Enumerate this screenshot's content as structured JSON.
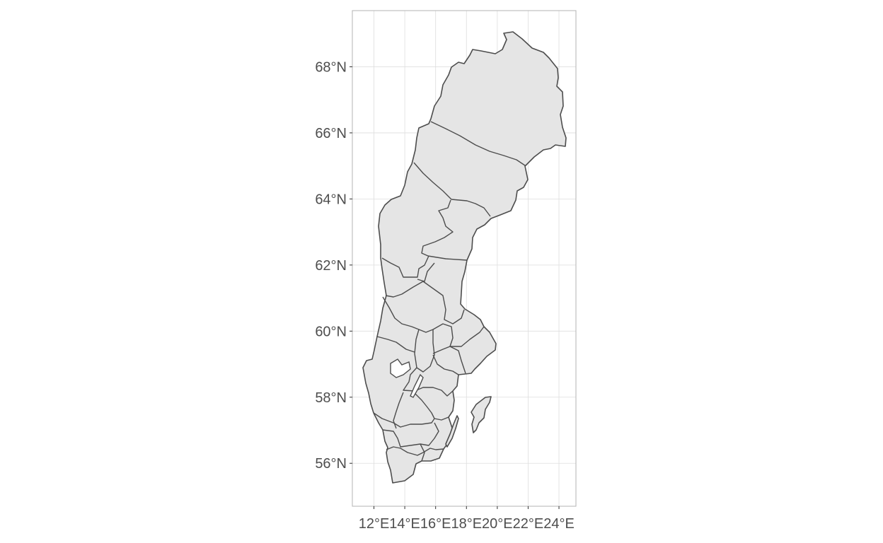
{
  "map": {
    "country": "Sweden",
    "fill_color": "#e5e5e5",
    "border_color": "#4d4d4d",
    "grid_color": "#dedede",
    "panel_border_color": "#b3b3b3",
    "lat_range": [
      54.7,
      69.7
    ],
    "lon_range": [
      10.6,
      25.1
    ],
    "grid": true
  },
  "axes": {
    "y_ticks": [
      {
        "value": 56,
        "label": "56°N"
      },
      {
        "value": 58,
        "label": "58°N"
      },
      {
        "value": 60,
        "label": "60°N"
      },
      {
        "value": 62,
        "label": "62°N"
      },
      {
        "value": 64,
        "label": "64°N"
      },
      {
        "value": 66,
        "label": "66°N"
      },
      {
        "value": 68,
        "label": "68°N"
      }
    ],
    "x_ticks": [
      {
        "value": 12,
        "label": "12°E"
      },
      {
        "value": 14,
        "label": "14°E"
      },
      {
        "value": 16,
        "label": "16°E"
      },
      {
        "value": 18,
        "label": "18°E"
      },
      {
        "value": 20,
        "label": "20°E"
      },
      {
        "value": 22,
        "label": "22°E"
      },
      {
        "value": 24,
        "label": "24°E"
      }
    ]
  }
}
